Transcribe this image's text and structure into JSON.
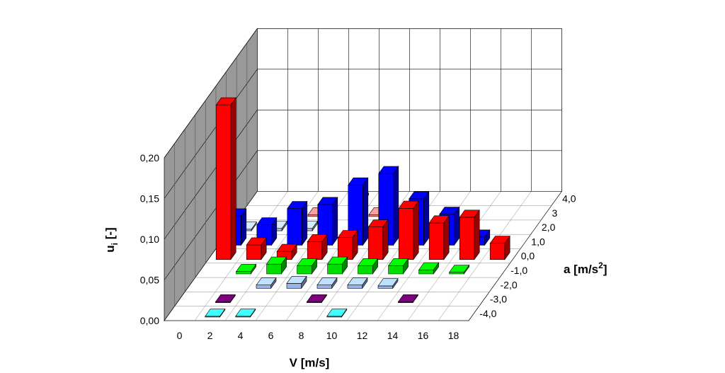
{
  "chart_data": {
    "type": "bar3d",
    "ylabel": "u",
    "ylabel_sub": "i",
    "ylabel_unit": " [-]",
    "xlabel": "V [m/s]",
    "zlabel": "a [m/s",
    "zlabel_sup": "2",
    "zlabel_end": "]",
    "ylim": [
      0,
      0.2
    ],
    "y_ticks": [
      "0,00",
      "0,05",
      "0,10",
      "0,15",
      "0,20"
    ],
    "x_categories": [
      "0",
      "2",
      "4",
      "6",
      "8",
      "10",
      "12",
      "14",
      "16",
      "18"
    ],
    "z_ticks": [
      "-4,0",
      "-3,0",
      "-2,0",
      "-1,0",
      "0,0",
      "1,0",
      "2,0",
      "3",
      "4,0"
    ],
    "grid": true,
    "series": [
      {
        "a": "-4,0",
        "color": "#33cccc",
        "values": [
          null,
          0.001,
          0.001,
          null,
          null,
          0.001,
          null,
          null,
          null,
          null
        ]
      },
      {
        "a": "-3,0",
        "color": "#660066",
        "values": [
          null,
          0.001,
          null,
          null,
          0.001,
          null,
          null,
          0.001,
          null,
          null
        ]
      },
      {
        "a": "-2,0",
        "color": "#99b3e6",
        "values": [
          null,
          null,
          0.004,
          0.006,
          0.004,
          0.004,
          0.003,
          null,
          null,
          null
        ]
      },
      {
        "a": "-1,0",
        "color": "#00dd00",
        "values": [
          null,
          0.003,
          0.012,
          0.01,
          0.012,
          0.01,
          0.01,
          0.005,
          0.002,
          null
        ]
      },
      {
        "a": "0,0",
        "color": "#ff0000",
        "values": [
          0.19,
          0.018,
          0.01,
          0.022,
          0.027,
          0.04,
          0.063,
          0.045,
          0.052,
          0.02
        ]
      },
      {
        "a": "1,0",
        "color": "#0000ff",
        "values": [
          0.036,
          0.025,
          0.045,
          0.05,
          0.074,
          0.088,
          0.057,
          0.038,
          0.01,
          null
        ]
      },
      {
        "a": "2,0",
        "color": "#aabbe6",
        "values": [
          0.002,
          0.003,
          0.003,
          null,
          null,
          null,
          null,
          null,
          null,
          null
        ]
      },
      {
        "a": "3",
        "color": "#ff8080",
        "values": [
          null,
          null,
          0.002,
          null,
          0.002,
          null,
          null,
          null,
          null,
          null
        ]
      },
      {
        "a": "4,0",
        "color": "#9aa060",
        "values": [
          null,
          null,
          null,
          0.002,
          null,
          null,
          null,
          null,
          null,
          null
        ]
      }
    ]
  }
}
